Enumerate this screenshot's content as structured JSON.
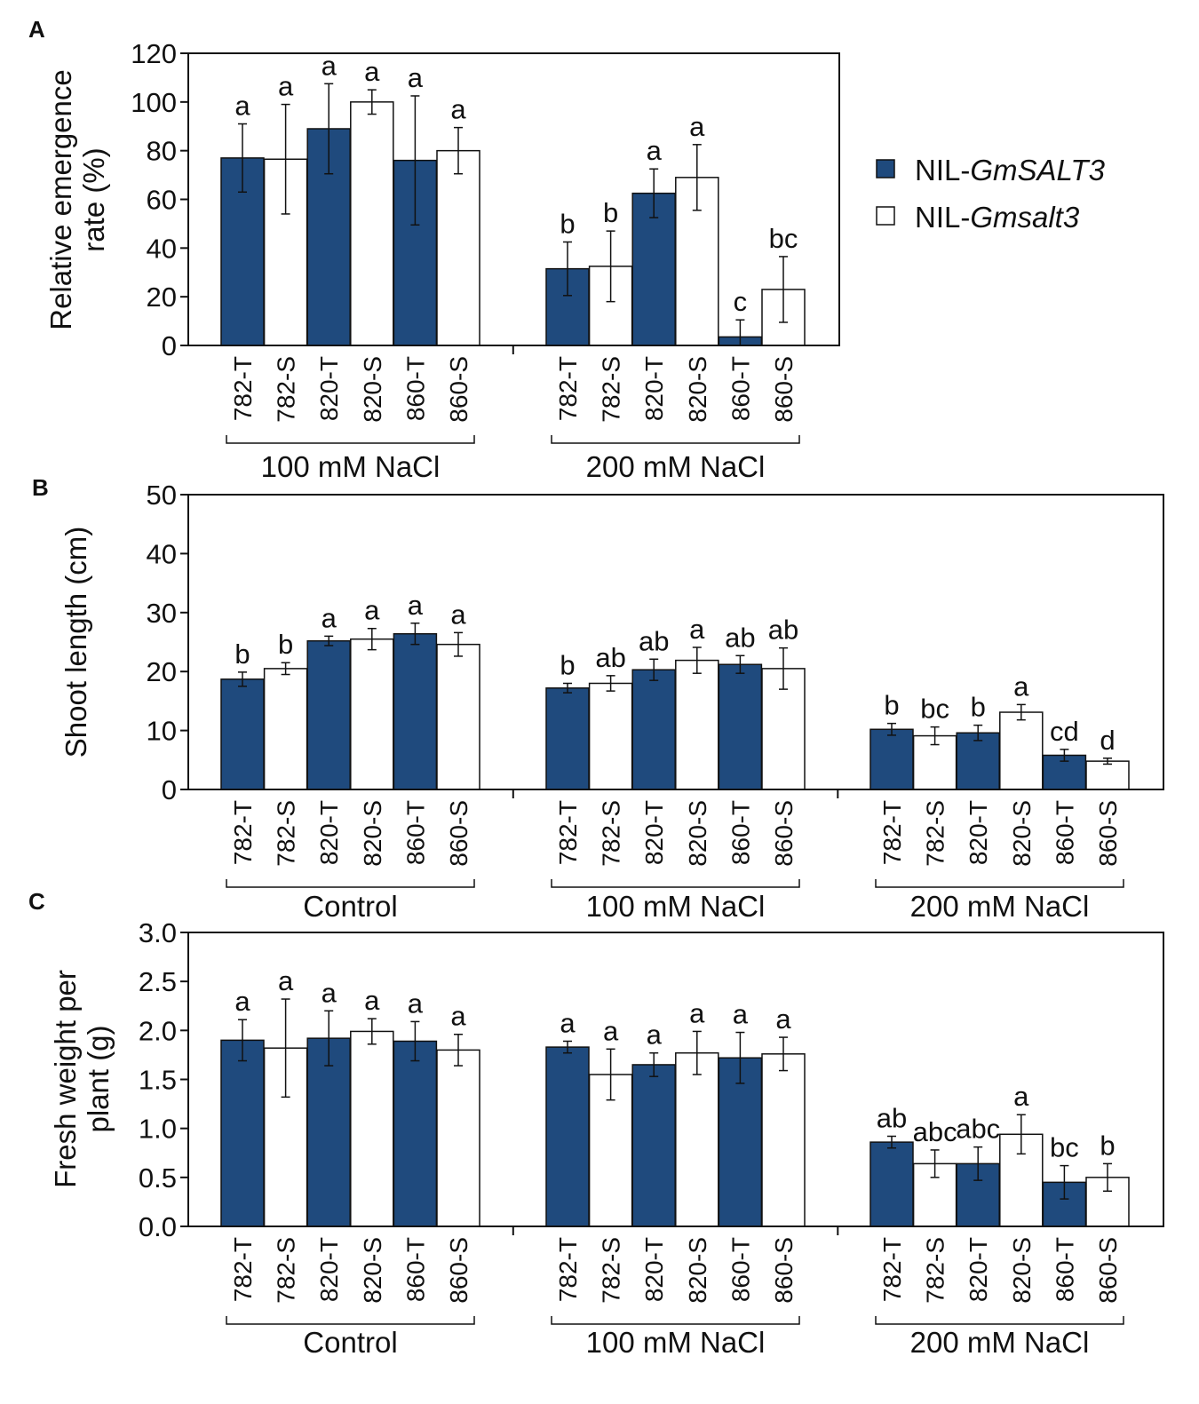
{
  "colors": {
    "series1": "#1f4a7d",
    "series2": "#ffffff",
    "outline": "#111111"
  },
  "legend": [
    {
      "prefix": "NIL-",
      "name": "GmSALT3"
    },
    {
      "prefix": "NIL-",
      "name": "Gmsalt3"
    }
  ],
  "chart_data": [
    {
      "type": "bar",
      "panel": "A",
      "ylabel": [
        "Relative emergence",
        "rate (%)"
      ],
      "ylim": [
        0,
        120
      ],
      "yticks": [
        "0",
        "20",
        "40",
        "60",
        "80",
        "100",
        "120"
      ],
      "groups": [
        {
          "label": "100 mM NaCl",
          "bars": [
            {
              "x": "782-T",
              "value": 77,
              "err": 14,
              "sig": "a",
              "series": 0
            },
            {
              "x": "782-S",
              "value": 76.5,
              "err": 22.5,
              "sig": "a",
              "series": 1
            },
            {
              "x": "820-T",
              "value": 89,
              "err": 18.5,
              "sig": "a",
              "series": 0
            },
            {
              "x": "820-S",
              "value": 100,
              "err": 5,
              "sig": "a",
              "series": 1
            },
            {
              "x": "860-T",
              "value": 76,
              "err": 26.5,
              "sig": "a",
              "series": 0
            },
            {
              "x": "860-S",
              "value": 80,
              "err": 9.5,
              "sig": "a",
              "series": 1
            }
          ]
        },
        {
          "label": "200 mM NaCl",
          "bars": [
            {
              "x": "782-T",
              "value": 31.5,
              "err": 11,
              "sig": "b",
              "series": 0
            },
            {
              "x": "782-S",
              "value": 32.5,
              "err": 14.5,
              "sig": "b",
              "series": 1
            },
            {
              "x": "820-T",
              "value": 62.5,
              "err": 10,
              "sig": "a",
              "series": 0
            },
            {
              "x": "820-S",
              "value": 69,
              "err": 13.5,
              "sig": "a",
              "series": 1
            },
            {
              "x": "860-T",
              "value": 3.5,
              "err": 7,
              "sig": "c",
              "series": 0
            },
            {
              "x": "860-S",
              "value": 23,
              "err": 13.5,
              "sig": "bc",
              "series": 1
            }
          ]
        }
      ]
    },
    {
      "type": "bar",
      "panel": "B",
      "ylabel": [
        "Shoot length (cm)"
      ],
      "ylim": [
        0,
        50
      ],
      "yticks": [
        "0",
        "10",
        "20",
        "30",
        "40",
        "50"
      ],
      "groups": [
        {
          "label": "Control",
          "bars": [
            {
              "x": "782-T",
              "value": 18.7,
              "err": 1.2,
              "sig": "b",
              "series": 0
            },
            {
              "x": "782-S",
              "value": 20.5,
              "err": 1,
              "sig": "b",
              "series": 1
            },
            {
              "x": "820-T",
              "value": 25.2,
              "err": 0.8,
              "sig": "a",
              "series": 0
            },
            {
              "x": "820-S",
              "value": 25.5,
              "err": 1.8,
              "sig": "a",
              "series": 1
            },
            {
              "x": "860-T",
              "value": 26.4,
              "err": 1.8,
              "sig": "a",
              "series": 0
            },
            {
              "x": "860-S",
              "value": 24.6,
              "err": 2,
              "sig": "a",
              "series": 1
            }
          ]
        },
        {
          "label": "100 mM NaCl",
          "bars": [
            {
              "x": "782-T",
              "value": 17.2,
              "err": 0.8,
              "sig": "b",
              "series": 0
            },
            {
              "x": "782-S",
              "value": 18,
              "err": 1.3,
              "sig": "ab",
              "series": 1
            },
            {
              "x": "820-T",
              "value": 20.3,
              "err": 1.8,
              "sig": "ab",
              "series": 0
            },
            {
              "x": "820-S",
              "value": 21.9,
              "err": 2.2,
              "sig": "a",
              "series": 1
            },
            {
              "x": "860-T",
              "value": 21.2,
              "err": 1.5,
              "sig": "ab",
              "series": 0
            },
            {
              "x": "860-S",
              "value": 20.5,
              "err": 3.5,
              "sig": "ab",
              "series": 1
            }
          ]
        },
        {
          "label": "200 mM NaCl",
          "bars": [
            {
              "x": "782-T",
              "value": 10.2,
              "err": 1,
              "sig": "b",
              "series": 0
            },
            {
              "x": "782-S",
              "value": 9.1,
              "err": 1.5,
              "sig": "bc",
              "series": 1
            },
            {
              "x": "820-T",
              "value": 9.6,
              "err": 1.3,
              "sig": "b",
              "series": 0
            },
            {
              "x": "820-S",
              "value": 13.1,
              "err": 1.3,
              "sig": "a",
              "series": 1
            },
            {
              "x": "860-T",
              "value": 5.8,
              "err": 1,
              "sig": "cd",
              "series": 0
            },
            {
              "x": "860-S",
              "value": 4.8,
              "err": 0.5,
              "sig": "d",
              "series": 1
            }
          ]
        }
      ]
    },
    {
      "type": "bar",
      "panel": "C",
      "ylabel": [
        "Fresh weight per",
        "plant (g)"
      ],
      "ylim": [
        0,
        3
      ],
      "yticks": [
        "0.0",
        "0.5",
        "1.0",
        "1.5",
        "2.0",
        "2.5",
        "3.0"
      ],
      "groups": [
        {
          "label": "Control",
          "bars": [
            {
              "x": "782-T",
              "value": 1.9,
              "err": 0.21,
              "sig": "a",
              "series": 0
            },
            {
              "x": "782-S",
              "value": 1.82,
              "err": 0.5,
              "sig": "a",
              "series": 1
            },
            {
              "x": "820-T",
              "value": 1.92,
              "err": 0.28,
              "sig": "a",
              "series": 0
            },
            {
              "x": "820-S",
              "value": 1.99,
              "err": 0.13,
              "sig": "a",
              "series": 1
            },
            {
              "x": "860-T",
              "value": 1.89,
              "err": 0.2,
              "sig": "a",
              "series": 0
            },
            {
              "x": "860-S",
              "value": 1.8,
              "err": 0.16,
              "sig": "a",
              "series": 1
            }
          ]
        },
        {
          "label": "100 mM NaCl",
          "bars": [
            {
              "x": "782-T",
              "value": 1.83,
              "err": 0.06,
              "sig": "a",
              "series": 0
            },
            {
              "x": "782-S",
              "value": 1.55,
              "err": 0.26,
              "sig": "a",
              "series": 1
            },
            {
              "x": "820-T",
              "value": 1.65,
              "err": 0.12,
              "sig": "a",
              "series": 0
            },
            {
              "x": "820-S",
              "value": 1.77,
              "err": 0.22,
              "sig": "a",
              "series": 1
            },
            {
              "x": "860-T",
              "value": 1.72,
              "err": 0.26,
              "sig": "a",
              "series": 0
            },
            {
              "x": "860-S",
              "value": 1.76,
              "err": 0.17,
              "sig": "a",
              "series": 1
            }
          ]
        },
        {
          "label": "200 mM NaCl",
          "bars": [
            {
              "x": "782-T",
              "value": 0.86,
              "err": 0.06,
              "sig": "ab",
              "series": 0
            },
            {
              "x": "782-S",
              "value": 0.64,
              "err": 0.14,
              "sig": "abc",
              "series": 1
            },
            {
              "x": "820-T",
              "value": 0.64,
              "err": 0.17,
              "sig": "abc",
              "series": 0
            },
            {
              "x": "820-S",
              "value": 0.94,
              "err": 0.2,
              "sig": "a",
              "series": 1
            },
            {
              "x": "860-T",
              "value": 0.45,
              "err": 0.17,
              "sig": "bc",
              "series": 0
            },
            {
              "x": "860-S",
              "value": 0.5,
              "err": 0.14,
              "sig": "b",
              "series": 1
            }
          ]
        }
      ]
    }
  ]
}
